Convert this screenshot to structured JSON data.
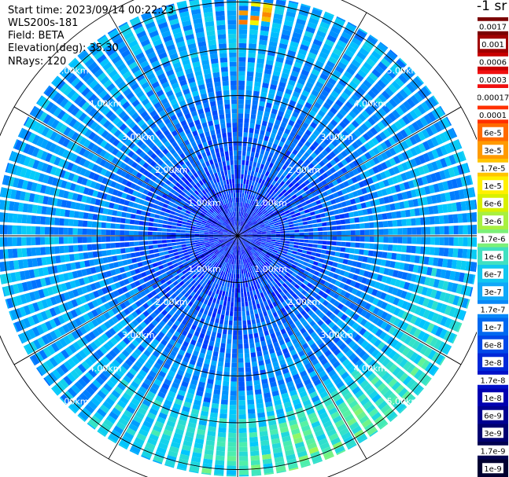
{
  "header": {
    "start_time": "Start time: 2023/09/14 00:22:23",
    "instrument": "WLS200s-181",
    "field": "Field: BETA",
    "elevation": "Elevation(deg): 35.30",
    "nrays": "NRays: 120"
  },
  "colorbar": {
    "unit_label": "-1 sr",
    "labels": [
      "0.0017",
      "0.001",
      "0.0006",
      "0.0003",
      "0.00017",
      "0.0001",
      "6e-5",
      "3e-5",
      "1.7e-5",
      "1e-5",
      "6e-6",
      "3e-6",
      "1.7e-6",
      "1e-6",
      "6e-7",
      "3e-7",
      "1.7e-7",
      "1e-7",
      "6e-8",
      "3e-8",
      "1.7e-8",
      "1e-8",
      "6e-9",
      "3e-9",
      "1.7e-9",
      "1e-9"
    ],
    "colors": [
      "#7a0000",
      "#a00000",
      "#c80000",
      "#f01010",
      "#ffffff",
      "#ff3000",
      "#ff6a00",
      "#ff9a00",
      "#ffc400",
      "#fff000",
      "#d8f000",
      "#a8f040",
      "#7cf078",
      "#40e0c0",
      "#10c8f0",
      "#10a8f8",
      "#0888f8",
      "#0068f0",
      "#0048e8",
      "#0028d8",
      "#0010c8",
      "#0000b0",
      "#000090",
      "#000070",
      "#000050",
      "#000030"
    ]
  },
  "chart_data": {
    "type": "heatmap",
    "projection": "polar PPI",
    "nrays": 120,
    "elevation_deg": 35.3,
    "field": "BETA",
    "range_rings_km": [
      1,
      2,
      3,
      4,
      5
    ],
    "ring_labels": [
      "1.00km",
      "2.00km",
      "3.00km",
      "4.00km",
      "5.00km"
    ],
    "ring_label_bearings_deg": [
      -45,
      45,
      135,
      225
    ],
    "spokes_deg": [
      0,
      30,
      60,
      90,
      120,
      150
    ],
    "color_scale": "log",
    "value_range": [
      1e-09,
      0.0017
    ],
    "typical_value_by_range_km": [
      {
        "range_km": 0.5,
        "value": 1e-08
      },
      {
        "range_km": 1.0,
        "value": 1.7e-08
      },
      {
        "range_km": 2.0,
        "value": 3e-08
      },
      {
        "range_km": 3.0,
        "value": 6e-08
      },
      {
        "range_km": 4.0,
        "value": 1e-07
      },
      {
        "range_km": 5.0,
        "value": 1e-07
      }
    ],
    "enhanced_region": {
      "bearing_from_deg": 100,
      "bearing_to_deg": 220,
      "range_from_km": 3.5,
      "range_to_km": 5.1,
      "value": 1e-06
    },
    "hotspot": {
      "bearing_deg": 5,
      "range_from_km": 4.5,
      "range_to_km": 5.0,
      "value": 3e-05
    }
  }
}
